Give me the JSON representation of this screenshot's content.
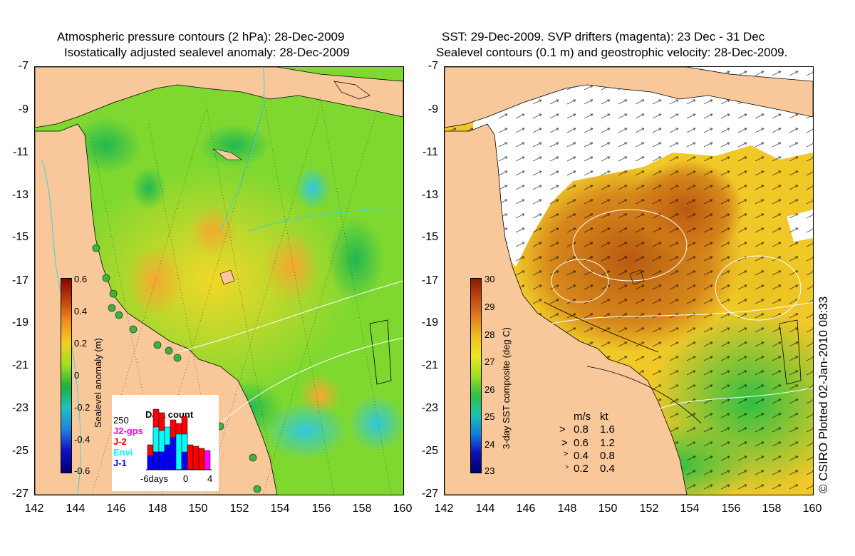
{
  "left_panel": {
    "title_line1": "Atmospheric pressure contours (2 hPa): 28-Dec-2009",
    "title_line2": "Isostatically adjusted sealevel anomaly: 28-Dec-2009",
    "colorbar_label": "Sealevel anomaly (m)",
    "colorbar_ticks": [
      "0.6",
      "0.4",
      "0.2",
      "0",
      "-0.2",
      "-0.4",
      "-0.6"
    ],
    "colorbar_range": [
      -0.6,
      0.6
    ],
    "inset": {
      "title": "Data count",
      "ymax_label": "250",
      "xticks": [
        "-6days",
        "0",
        "4"
      ],
      "legend": [
        {
          "label": "J2-gps",
          "color": "#ff00ff"
        },
        {
          "label": "J-2",
          "color": "#ff0000"
        },
        {
          "label": "Envi",
          "color": "#00ffff"
        },
        {
          "label": "J-1",
          "color": "#0000ff"
        }
      ]
    }
  },
  "right_panel": {
    "title_line1": "SST: 29-Dec-2009. SVP drifters (magenta): 23 Dec - 31 Dec",
    "title_line2": "Sealevel contours (0.1 m) and geostrophic velocity: 28-Dec-2009.",
    "colorbar_label": "3-day SST composite (deg C)",
    "colorbar_ticks": [
      "30",
      "29",
      "28",
      "27",
      "26",
      "25",
      "24",
      "23"
    ],
    "colorbar_range": [
      23,
      30
    ],
    "velocity_key": {
      "header_ms": "m/s",
      "header_kt": "kt",
      "rows": [
        {
          "ms": "0.8",
          "kt": "1.6"
        },
        {
          "ms": "0.6",
          "kt": "1.2"
        },
        {
          "ms": "0.4",
          "kt": "0.8"
        },
        {
          "ms": "0.2",
          "kt": "0.4"
        }
      ]
    }
  },
  "axes": {
    "lat_ticks": [
      "-7",
      "-9",
      "-11",
      "-13",
      "-15",
      "-17",
      "-19",
      "-21",
      "-23",
      "-25",
      "-27"
    ],
    "lon_ticks": [
      "142",
      "144",
      "146",
      "148",
      "150",
      "152",
      "154",
      "156",
      "158",
      "160"
    ]
  },
  "credit": "© CSIRO Plotted 02-Jan-2010 08:33",
  "colors": {
    "land": "#f9c89a",
    "ocean_low": "#22c040",
    "ocean_mid": "#a8e020",
    "ocean_high": "#f0c020",
    "sst_warm": "#b85a10",
    "cloud": "#ffffff"
  }
}
